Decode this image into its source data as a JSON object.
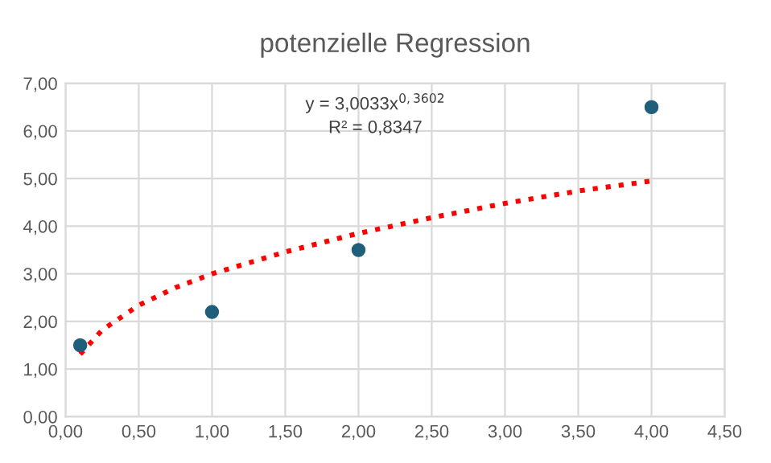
{
  "chart_data": {
    "type": "scatter",
    "title": "potenzielle Regression",
    "series": [
      {
        "color": "#1f5f7a",
        "marker": "circle",
        "x": [
          0.1,
          1,
          2,
          4
        ],
        "values": [
          1.5,
          2.2,
          3.5,
          6.5
        ]
      },
      {
        "type": "line",
        "color": "#ff0000",
        "marker": "none",
        "line_style": "dotted",
        "x": [
          0.1,
          0.25,
          0.5,
          0.75,
          1,
          1.5,
          2,
          2.5,
          3,
          3.5,
          4
        ],
        "values": [
          1.31,
          1.82,
          2.34,
          2.71,
          3.0,
          3.46,
          3.85,
          4.18,
          4.48,
          4.74,
          4.95
        ]
      }
    ],
    "annotations": [
      "y = 3,0033x$^{0,3602}$",
      "R² = 0,8347"
    ],
    "xlim": [
      0,
      4.5
    ],
    "xticks": [
      {
        "value": 0,
        "label": "0,00"
      },
      {
        "value": 0.5,
        "label": "0,50"
      },
      {
        "value": 1,
        "label": "1,00"
      },
      {
        "value": 1.5,
        "label": "1,50"
      },
      {
        "value": 2,
        "label": "2,00"
      },
      {
        "value": 2.5,
        "label": "2,50"
      },
      {
        "value": 3,
        "label": "3,00"
      },
      {
        "value": 3.5,
        "label": "3,50"
      },
      {
        "value": 4,
        "label": "4,00"
      },
      {
        "value": 4.5,
        "label": "4,50"
      }
    ],
    "ylim": [
      0,
      7
    ],
    "yticks": [
      {
        "value": 0,
        "label": "0,00"
      },
      {
        "value": 1,
        "label": "1,00"
      },
      {
        "value": 2,
        "label": "2,00"
      },
      {
        "value": 3,
        "label": "3,00"
      },
      {
        "value": 4,
        "label": "4,00"
      },
      {
        "value": 5,
        "label": "5,00"
      },
      {
        "value": 6,
        "label": "6,00"
      },
      {
        "value": 7,
        "label": "7,00"
      }
    ],
    "grid": true
  }
}
